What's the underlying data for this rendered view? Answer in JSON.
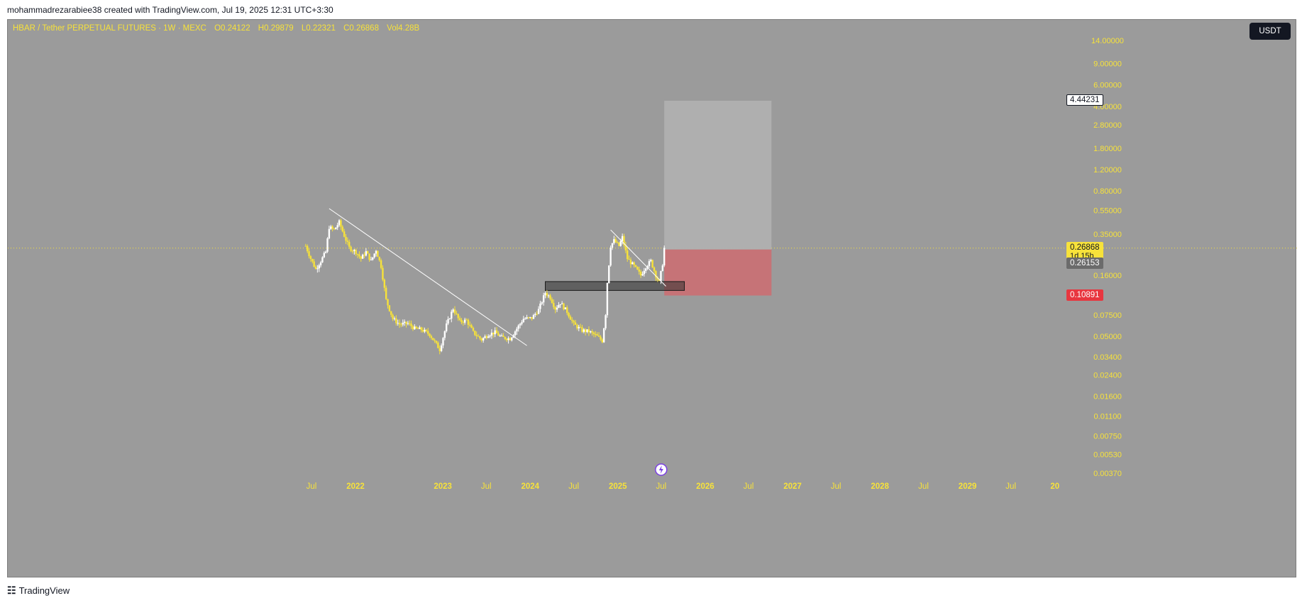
{
  "header": {
    "caption": "mohammadrezarabiee38 created with TradingView.com, Jul 19, 2025 12:31 UTC+3:30"
  },
  "legend": {
    "symbol": "HBAR / Tether PERPETUAL FUTURES · 1W · MEXC",
    "o_label": "O",
    "o_value": "0.24122",
    "h_label": "H",
    "h_value": "0.29879",
    "l_label": "L",
    "l_value": "0.22321",
    "c_label": "C",
    "c_value": "0.26868",
    "vol_label": "Vol",
    "vol_value": "4.28B"
  },
  "currency_badge": "USDT",
  "footer": {
    "brand": "TradingView",
    "logo": "tradingview-logo-icon"
  },
  "colors": {
    "background": "#9b9b9b",
    "candle_up": "#ffffff",
    "candle_down": "#f7e23a",
    "target_zone": "#b0b0b0",
    "stop_zone": "#c87175",
    "last_price": "#f7e23a",
    "stop_tag": "#e8363f"
  },
  "chart_data": {
    "type": "candlestick",
    "title": "HBAR / Tether PERPETUAL FUTURES · 1W · MEXC",
    "y_scale": "log",
    "y_ticks": [
      "14.00000",
      "9.00000",
      "6.00000",
      "4.00000",
      "2.80000",
      "1.80000",
      "1.20000",
      "0.80000",
      "0.55000",
      "0.35000",
      "0.16000",
      "0.07500",
      "0.05000",
      "0.03400",
      "0.02400",
      "0.01600",
      "0.01100",
      "0.00750",
      "0.00530",
      "0.00370"
    ],
    "x_ticks": [
      "Jul",
      "2022",
      "2023",
      "Jul",
      "2024",
      "Jul",
      "2025",
      "Jul",
      "2026",
      "Jul",
      "2027",
      "Jul",
      "2028",
      "Jul",
      "2029",
      "Jul",
      "20"
    ],
    "price_tags": {
      "target": "4.44231",
      "last_price": "0.26868",
      "countdown": "1d 15h",
      "entry": "0.26153",
      "stop": "0.10891"
    },
    "price_path": [
      [
        "2021-06-07",
        0.28
      ],
      [
        "2021-06-28",
        0.22
      ],
      [
        "2021-07-19",
        0.18
      ],
      [
        "2021-08-09",
        0.21
      ],
      [
        "2021-08-30",
        0.25
      ],
      [
        "2021-09-13",
        0.4
      ],
      [
        "2021-10-04",
        0.38
      ],
      [
        "2021-10-25",
        0.44
      ],
      [
        "2021-11-15",
        0.34
      ],
      [
        "2021-12-06",
        0.27
      ],
      [
        "2022-01-03",
        0.25
      ],
      [
        "2022-01-24",
        0.22
      ],
      [
        "2022-02-14",
        0.25
      ],
      [
        "2022-03-07",
        0.21
      ],
      [
        "2022-03-28",
        0.26
      ],
      [
        "2022-04-18",
        0.19
      ],
      [
        "2022-05-09",
        0.1
      ],
      [
        "2022-06-06",
        0.07
      ],
      [
        "2022-07-04",
        0.063
      ],
      [
        "2022-08-08",
        0.064
      ],
      [
        "2022-09-05",
        0.058
      ],
      [
        "2022-10-03",
        0.057
      ],
      [
        "2022-11-07",
        0.052
      ],
      [
        "2022-12-19",
        0.039
      ],
      [
        "2023-01-16",
        0.062
      ],
      [
        "2023-02-13",
        0.085
      ],
      [
        "2023-03-13",
        0.066
      ],
      [
        "2023-04-10",
        0.068
      ],
      [
        "2023-05-08",
        0.054
      ],
      [
        "2023-06-12",
        0.047
      ],
      [
        "2023-07-10",
        0.052
      ],
      [
        "2023-08-07",
        0.054
      ],
      [
        "2023-09-04",
        0.049
      ],
      [
        "2023-10-09",
        0.048
      ],
      [
        "2023-11-06",
        0.058
      ],
      [
        "2023-12-04",
        0.07
      ],
      [
        "2024-01-08",
        0.071
      ],
      [
        "2024-02-05",
        0.083
      ],
      [
        "2024-03-04",
        0.115
      ],
      [
        "2024-03-25",
        0.105
      ],
      [
        "2024-04-15",
        0.085
      ],
      [
        "2024-05-06",
        0.095
      ],
      [
        "2024-06-03",
        0.08
      ],
      [
        "2024-07-01",
        0.063
      ],
      [
        "2024-08-05",
        0.056
      ],
      [
        "2024-09-02",
        0.055
      ],
      [
        "2024-10-07",
        0.05
      ],
      [
        "2024-10-28",
        0.046
      ],
      [
        "2024-11-11",
        0.077
      ],
      [
        "2024-11-18",
        0.14
      ],
      [
        "2024-12-02",
        0.28
      ],
      [
        "2024-12-16",
        0.31
      ],
      [
        "2025-01-06",
        0.28
      ],
      [
        "2025-01-20",
        0.33
      ],
      [
        "2025-02-10",
        0.22
      ],
      [
        "2025-03-10",
        0.19
      ],
      [
        "2025-04-07",
        0.16
      ],
      [
        "2025-04-28",
        0.19
      ],
      [
        "2025-05-19",
        0.21
      ],
      [
        "2025-06-09",
        0.16
      ],
      [
        "2025-06-23",
        0.14
      ],
      [
        "2025-07-07",
        0.2
      ],
      [
        "2025-07-14",
        0.2687
      ]
    ],
    "trendlines": [
      {
        "from": [
          "2021-09-13",
          0.57
        ],
        "to": [
          "2023-12-18",
          0.042
        ]
      },
      {
        "from": [
          "2024-12-02",
          0.38
        ],
        "to": [
          "2025-07-21",
          0.13
        ]
      }
    ],
    "support_zone": {
      "from": "2024-03-04",
      "to": "2025-10-06",
      "top": 0.142,
      "bottom": 0.12
    },
    "position": {
      "from": "2025-07-14",
      "to": "2026-10-05",
      "entry": 0.26153,
      "target": 4.44231,
      "stop": 0.10891
    },
    "last_price": 0.26868,
    "grid": false
  }
}
